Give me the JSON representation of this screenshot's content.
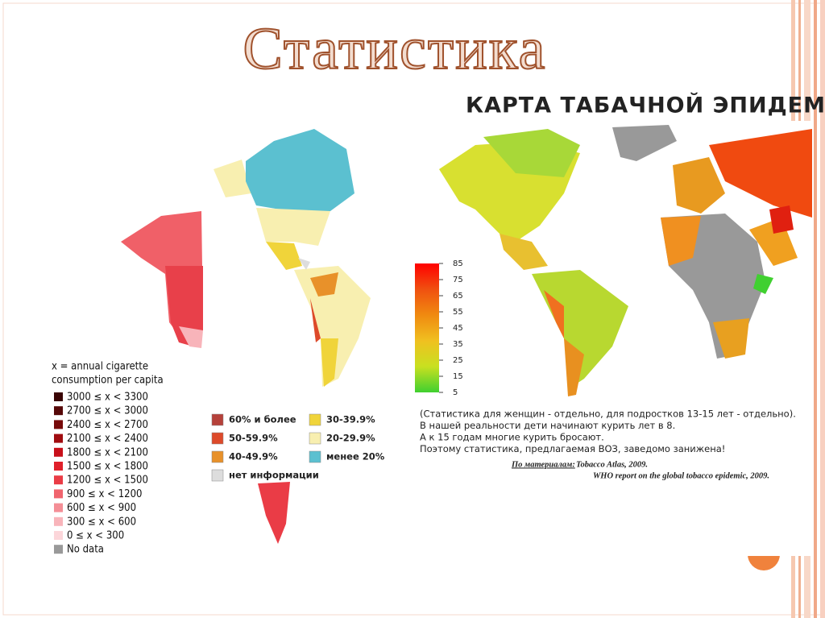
{
  "title": "Статистика",
  "consumption_map": {
    "legend_title": [
      "x = annual cigarette",
      "consumption per capita"
    ],
    "legend": [
      {
        "label": "3000 ≤ x < 3300",
        "color": "#3a0505"
      },
      {
        "label": "2700 ≤ x < 3000",
        "color": "#560808"
      },
      {
        "label": "2400 ≤ x < 2700",
        "color": "#770a0a"
      },
      {
        "label": "2100 ≤ x < 2400",
        "color": "#a00c10"
      },
      {
        "label": "1800 ≤ x < 2100",
        "color": "#c8101a"
      },
      {
        "label": "1500 ≤ x < 1800",
        "color": "#e0202a"
      },
      {
        "label": "1200 ≤ x < 1500",
        "color": "#ea3c46"
      },
      {
        "label": "900 ≤ x < 1200",
        "color": "#f0646e"
      },
      {
        "label": "600 ≤ x < 900",
        "color": "#f48e96"
      },
      {
        "label": "300 ≤ x < 600",
        "color": "#f8b4ba"
      },
      {
        "label": "0 ≤ x < 300",
        "color": "#fcd6da"
      },
      {
        "label": "No data",
        "color": "#999999"
      }
    ]
  },
  "epidemic_map": {
    "title": "КАРТА ТАБАЧНОЙ ЭПИДЕМИИ",
    "legend": [
      {
        "label": "60% и более",
        "color": "#b5413a"
      },
      {
        "label": "50-59.9%",
        "color": "#dd4a2a"
      },
      {
        "label": "40-49.9%",
        "color": "#e8912a"
      },
      {
        "label": "нет информации",
        "color": "#dddddd"
      },
      {
        "label": "30-39.9%",
        "color": "#f0d43a"
      },
      {
        "label": "20-29.9%",
        "color": "#f8efb0"
      },
      {
        "label": "менее 20%",
        "color": "#5bc0d0"
      }
    ]
  },
  "prevalence_map": {
    "scale_ticks": [
      85,
      75,
      65,
      55,
      45,
      35,
      25,
      15,
      5
    ],
    "scale_colors": [
      "#ff0000",
      "#f05010",
      "#f08a10",
      "#f0c020",
      "#c8e020",
      "#40d030"
    ],
    "notes": [
      "(Статистика для женщин - отдельно, для подростков 13-15 лет - отдельно).",
      "В нашей реальности дети начинают курить лет в 8.",
      "А к 15 годам многие курить бросают.",
      "Поэтому статистика, предлагаемая ВОЗ, заведомо занижена!"
    ],
    "source_label": "По материалам:",
    "sources": [
      "Tobacco Atlas, 2009.",
      "WHO report on the global tobacco epidemic, 2009."
    ]
  }
}
